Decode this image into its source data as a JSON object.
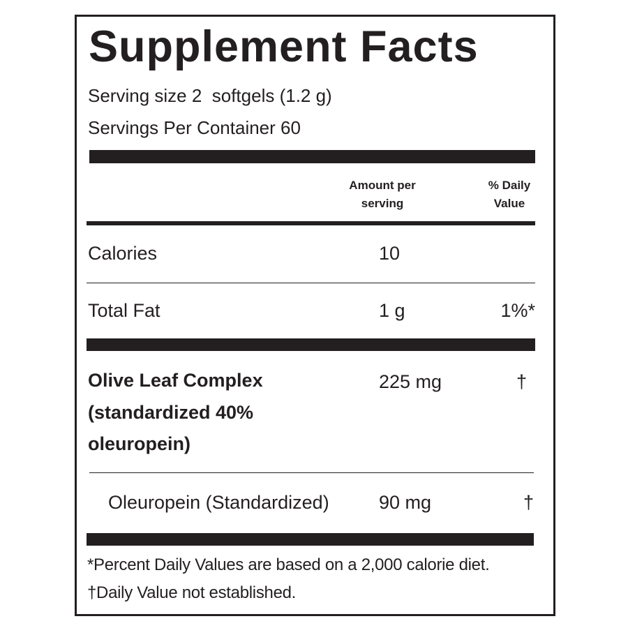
{
  "header": {
    "title": "Supplement Facts",
    "serving_size": "Serving size 2  softgels (1.2 g)",
    "servings_per_container": "Servings Per Container 60"
  },
  "table": {
    "columns": [
      "Amount per serving",
      "% Daily Value"
    ],
    "rows": [
      [
        "Calories",
        "10",
        null
      ],
      [
        "Total Fat",
        "1 g",
        "1%*"
      ],
      [
        "Olive Leaf Complex (standardized 40% oleuropein)",
        "225 mg",
        "†"
      ],
      [
        "Oleuropein (Standardized)",
        "90 mg",
        "†"
      ]
    ]
  },
  "footnotes": [
    "*Percent Daily Values are based on a 2,000 calorie diet.",
    "†Daily Value not established."
  ]
}
